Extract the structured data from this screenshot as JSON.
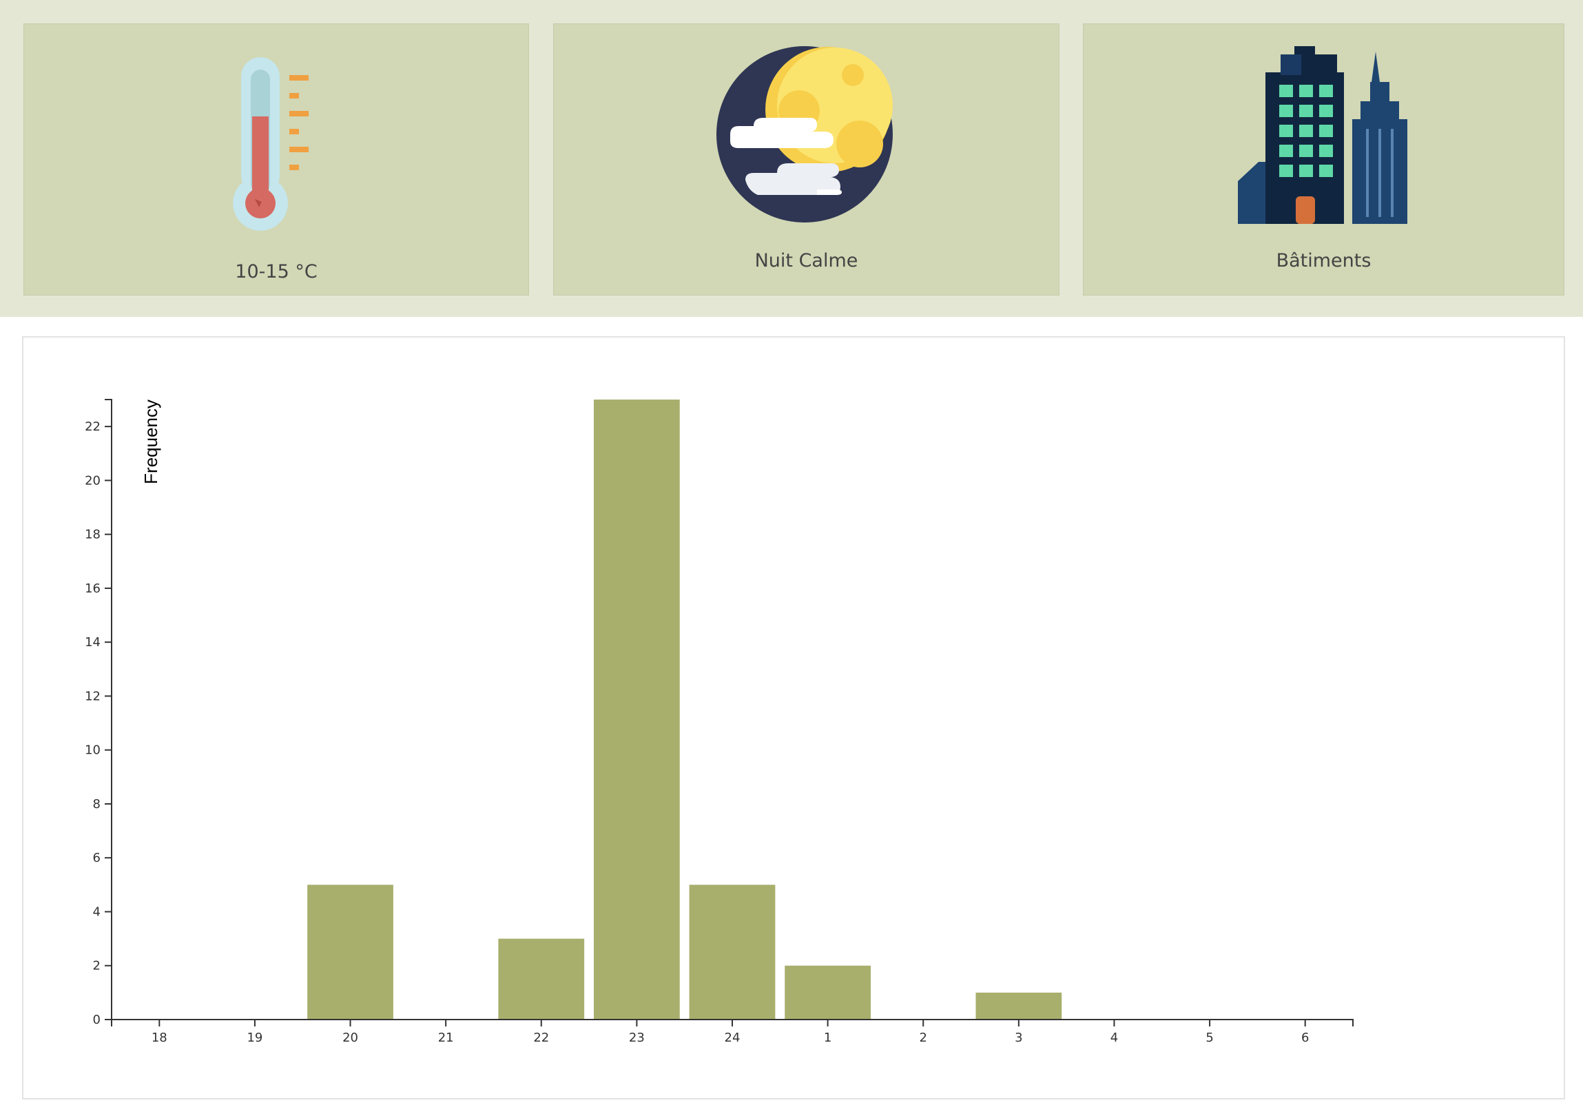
{
  "cards": [
    {
      "label": "10-15 °C",
      "icon": "thermometer-icon"
    },
    {
      "label": "Nuit Calme",
      "icon": "moon-cloud-icon"
    },
    {
      "label": "Bâtiments",
      "icon": "buildings-icon"
    }
  ],
  "colors": {
    "band": "#e5e7d5",
    "card": "#d2d7b5",
    "bar": "#a8af6c",
    "axis": "#333333"
  },
  "chart_data": {
    "type": "bar",
    "title": "",
    "xlabel": "",
    "ylabel": "Frequency",
    "categories": [
      "18",
      "19",
      "20",
      "21",
      "22",
      "23",
      "24",
      "1",
      "2",
      "3",
      "4",
      "5",
      "6"
    ],
    "values": [
      0,
      0,
      5,
      0,
      3,
      23,
      5,
      2,
      0,
      1,
      0,
      0,
      0
    ],
    "ylim": [
      0,
      23
    ],
    "yticks": [
      0,
      2,
      4,
      6,
      8,
      10,
      12,
      14,
      16,
      18,
      20,
      22
    ],
    "grid": false,
    "legend": "none"
  }
}
